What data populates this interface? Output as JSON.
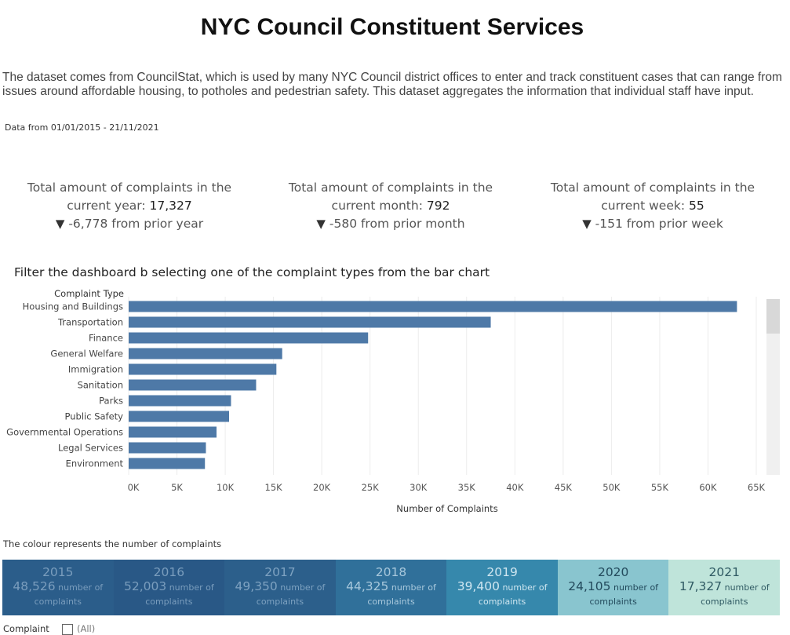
{
  "title": "NYC Council Constituent Services",
  "description": "The dataset comes from CouncilStat, which is used by many NYC Council district offices to enter and track constituent cases that can range from issues around affordable housing, to potholes and pedestrian safety. This dataset aggregates the information that individual staff have input.",
  "date_range": "Data from 01/01/2015 - 21/11/2021",
  "kpis": [
    {
      "label": "Total amount of complaints in the current year:",
      "value": "17,327",
      "change_arrow": "▼",
      "change": "-6,778 from prior year"
    },
    {
      "label": "Total amount of complaints in the current month:",
      "value": "792",
      "change_arrow": "▼",
      "change": "-580 from prior month"
    },
    {
      "label": "Total amount of complaints in the current week:",
      "value": "55",
      "change_arrow": "▼",
      "change": "-151 from prior week"
    }
  ],
  "filter_title": "Filter the dashboard b selecting one of the complaint types from the bar chart",
  "chart_data": {
    "type": "bar",
    "orientation": "horizontal",
    "row_header": "Complaint Type",
    "categories": [
      "Housing and Buildings",
      "Transportation",
      "Finance",
      "General Welfare",
      "Immigration",
      "Sanitation",
      "Parks",
      "Public Safety",
      "Governmental Operations",
      "Legal Services",
      "Environment"
    ],
    "values": [
      63000,
      37500,
      24800,
      15900,
      15300,
      13200,
      10600,
      10400,
      9100,
      8000,
      7900
    ],
    "xlabel": "Number of Complaints",
    "xlim": [
      0,
      65000
    ],
    "ticks": [
      "0K",
      "5K",
      "10K",
      "15K",
      "20K",
      "25K",
      "30K",
      "35K",
      "40K",
      "45K",
      "50K",
      "55K",
      "60K",
      "65K"
    ],
    "grid": true,
    "bar_color": "#4e79a7"
  },
  "colour_note": "The colour represents the number of complaints",
  "years": [
    {
      "year": "2015",
      "count": "48,526",
      "unit_a": "number of",
      "unit_b": "complaints",
      "bg": "#2b5d8a",
      "year_color": "#7a9dbd",
      "count_color": "#7a9dbd"
    },
    {
      "year": "2016",
      "count": "52,003",
      "unit_a": "number of",
      "unit_b": "complaints",
      "bg": "#295886",
      "year_color": "#7a9dbd",
      "count_color": "#7a9dbd"
    },
    {
      "year": "2017",
      "count": "49,350",
      "unit_a": "number of",
      "unit_b": "complaints",
      "bg": "#2c5f8b",
      "year_color": "#7ea2c1",
      "count_color": "#7ea2c1"
    },
    {
      "year": "2018",
      "count": "44,325",
      "unit_a": "number of",
      "unit_b": "complaints",
      "bg": "#30709a",
      "year_color": "#a8c8dc",
      "count_color": "#a8c8dc"
    },
    {
      "year": "2019",
      "count": "39,400",
      "unit_a": "number of",
      "unit_b": "complaints",
      "bg": "#3688ac",
      "year_color": "#cfe6f0",
      "count_color": "#cfe6f0"
    },
    {
      "year": "2020",
      "count": "24,105",
      "unit_a": "number of",
      "unit_b": "complaints",
      "bg": "#89c5cf",
      "year_color": "#234a5c",
      "count_color": "#234a5c"
    },
    {
      "year": "2021",
      "count": "17,327",
      "unit_a": "number of",
      "unit_b": "complaints",
      "bg": "#bfe4da",
      "year_color": "#2f5a63",
      "count_color": "#2f5a63"
    }
  ],
  "bottom_filter": {
    "label": "Complaint",
    "option": "(All)"
  }
}
